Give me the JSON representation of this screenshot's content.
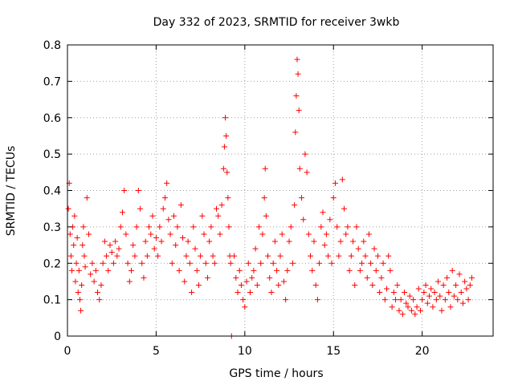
{
  "chart_data": {
    "type": "scatter",
    "title": "Day 332 of 2023, SRMTID for receiver 3wkb",
    "xlabel": "GPS time / hours",
    "ylabel": "SRMTID / TECUs",
    "xlim": [
      0,
      24
    ],
    "ylim": [
      0,
      0.8
    ],
    "grid": true,
    "marker": "plus",
    "marker_color": "#ff0000",
    "x_ticks": [
      {
        "value": 0,
        "label": "0"
      },
      {
        "value": 5,
        "label": "5"
      },
      {
        "value": 10,
        "label": "10"
      },
      {
        "value": 15,
        "label": "15"
      },
      {
        "value": 20,
        "label": "20"
      }
    ],
    "y_ticks": [
      {
        "value": 0,
        "label": "0"
      },
      {
        "value": 0.1,
        "label": "0.1"
      },
      {
        "value": 0.2,
        "label": "0.2"
      },
      {
        "value": 0.3,
        "label": "0.3"
      },
      {
        "value": 0.4,
        "label": "0.4"
      },
      {
        "value": 0.5,
        "label": "0.5"
      },
      {
        "value": 0.6,
        "label": "0.6"
      },
      {
        "value": 0.7,
        "label": "0.7"
      },
      {
        "value": 0.8,
        "label": "0.8"
      }
    ],
    "series": [
      {
        "name": "SRMTID",
        "color": "#ff0000",
        "points": [
          [
            0.05,
            0.35
          ],
          [
            0.1,
            0.42
          ],
          [
            0.15,
            0.28
          ],
          [
            0.2,
            0.22
          ],
          [
            0.25,
            0.18
          ],
          [
            0.3,
            0.3
          ],
          [
            0.35,
            0.25
          ],
          [
            0.4,
            0.33
          ],
          [
            0.45,
            0.15
          ],
          [
            0.5,
            0.2
          ],
          [
            0.55,
            0.27
          ],
          [
            0.6,
            0.12
          ],
          [
            0.65,
            0.18
          ],
          [
            0.7,
            0.1
          ],
          [
            0.75,
            0.07
          ],
          [
            0.8,
            0.14
          ],
          [
            0.85,
            0.25
          ],
          [
            0.9,
            0.3
          ],
          [
            0.95,
            0.22
          ],
          [
            1.0,
            0.19
          ],
          [
            1.1,
            0.38
          ],
          [
            1.2,
            0.28
          ],
          [
            1.3,
            0.17
          ],
          [
            1.4,
            0.2
          ],
          [
            1.5,
            0.15
          ],
          [
            1.6,
            0.18
          ],
          [
            1.7,
            0.12
          ],
          [
            1.8,
            0.1
          ],
          [
            1.9,
            0.14
          ],
          [
            2.0,
            0.2
          ],
          [
            2.1,
            0.26
          ],
          [
            2.2,
            0.22
          ],
          [
            2.3,
            0.18
          ],
          [
            2.4,
            0.25
          ],
          [
            2.5,
            0.23
          ],
          [
            2.6,
            0.2
          ],
          [
            2.7,
            0.26
          ],
          [
            2.8,
            0.22
          ],
          [
            2.9,
            0.24
          ],
          [
            3.0,
            0.3
          ],
          [
            3.1,
            0.34
          ],
          [
            3.2,
            0.4
          ],
          [
            3.3,
            0.28
          ],
          [
            3.4,
            0.2
          ],
          [
            3.5,
            0.15
          ],
          [
            3.6,
            0.18
          ],
          [
            3.7,
            0.25
          ],
          [
            3.8,
            0.22
          ],
          [
            3.9,
            0.3
          ],
          [
            4.0,
            0.4
          ],
          [
            4.1,
            0.35
          ],
          [
            4.2,
            0.2
          ],
          [
            4.3,
            0.16
          ],
          [
            4.4,
            0.26
          ],
          [
            4.5,
            0.22
          ],
          [
            4.6,
            0.3
          ],
          [
            4.7,
            0.28
          ],
          [
            4.8,
            0.33
          ],
          [
            4.9,
            0.24
          ],
          [
            5.0,
            0.27
          ],
          [
            5.1,
            0.22
          ],
          [
            5.2,
            0.3
          ],
          [
            5.3,
            0.26
          ],
          [
            5.4,
            0.35
          ],
          [
            5.5,
            0.38
          ],
          [
            5.6,
            0.42
          ],
          [
            5.7,
            0.32
          ],
          [
            5.8,
            0.28
          ],
          [
            5.9,
            0.2
          ],
          [
            6.0,
            0.33
          ],
          [
            6.1,
            0.25
          ],
          [
            6.2,
            0.3
          ],
          [
            6.3,
            0.18
          ],
          [
            6.4,
            0.36
          ],
          [
            6.5,
            0.27
          ],
          [
            6.6,
            0.15
          ],
          [
            6.7,
            0.22
          ],
          [
            6.8,
            0.26
          ],
          [
            6.9,
            0.2
          ],
          [
            7.0,
            0.12
          ],
          [
            7.1,
            0.3
          ],
          [
            7.2,
            0.24
          ],
          [
            7.3,
            0.18
          ],
          [
            7.4,
            0.14
          ],
          [
            7.5,
            0.22
          ],
          [
            7.6,
            0.33
          ],
          [
            7.7,
            0.28
          ],
          [
            7.8,
            0.2
          ],
          [
            7.9,
            0.16
          ],
          [
            8.0,
            0.26
          ],
          [
            8.1,
            0.3
          ],
          [
            8.2,
            0.22
          ],
          [
            8.3,
            0.2
          ],
          [
            8.4,
            0.35
          ],
          [
            8.5,
            0.33
          ],
          [
            8.6,
            0.28
          ],
          [
            8.7,
            0.36
          ],
          [
            8.8,
            0.46
          ],
          [
            8.85,
            0.52
          ],
          [
            8.9,
            0.6
          ],
          [
            8.95,
            0.55
          ],
          [
            9.0,
            0.45
          ],
          [
            9.05,
            0.38
          ],
          [
            9.1,
            0.3
          ],
          [
            9.15,
            0.22
          ],
          [
            9.2,
            0.2
          ],
          [
            9.25,
            0.0
          ],
          [
            9.4,
            0.22
          ],
          [
            9.5,
            0.16
          ],
          [
            9.6,
            0.12
          ],
          [
            9.7,
            0.18
          ],
          [
            9.8,
            0.14
          ],
          [
            9.9,
            0.1
          ],
          [
            10.0,
            0.08
          ],
          [
            10.1,
            0.15
          ],
          [
            10.2,
            0.2
          ],
          [
            10.3,
            0.12
          ],
          [
            10.4,
            0.16
          ],
          [
            10.5,
            0.18
          ],
          [
            10.6,
            0.24
          ],
          [
            10.7,
            0.14
          ],
          [
            10.8,
            0.3
          ],
          [
            10.9,
            0.2
          ],
          [
            11.0,
            0.28
          ],
          [
            11.1,
            0.38
          ],
          [
            11.15,
            0.46
          ],
          [
            11.2,
            0.33
          ],
          [
            11.3,
            0.22
          ],
          [
            11.4,
            0.16
          ],
          [
            11.5,
            0.12
          ],
          [
            11.6,
            0.2
          ],
          [
            11.7,
            0.26
          ],
          [
            11.8,
            0.18
          ],
          [
            11.9,
            0.14
          ],
          [
            12.0,
            0.22
          ],
          [
            12.1,
            0.28
          ],
          [
            12.2,
            0.15
          ],
          [
            12.3,
            0.1
          ],
          [
            12.4,
            0.18
          ],
          [
            12.5,
            0.26
          ],
          [
            12.6,
            0.3
          ],
          [
            12.7,
            0.2
          ],
          [
            12.8,
            0.36
          ],
          [
            12.85,
            0.56
          ],
          [
            12.9,
            0.66
          ],
          [
            12.95,
            0.76
          ],
          [
            13.0,
            0.72
          ],
          [
            13.05,
            0.62
          ],
          [
            13.1,
            0.46
          ],
          [
            13.2,
            0.38
          ],
          [
            13.3,
            0.32
          ],
          [
            13.4,
            0.5
          ],
          [
            13.5,
            0.45
          ],
          [
            13.6,
            0.28
          ],
          [
            13.7,
            0.22
          ],
          [
            13.8,
            0.18
          ],
          [
            13.9,
            0.26
          ],
          [
            14.0,
            0.14
          ],
          [
            14.1,
            0.1
          ],
          [
            14.2,
            0.2
          ],
          [
            14.3,
            0.3
          ],
          [
            14.4,
            0.34
          ],
          [
            14.5,
            0.25
          ],
          [
            14.6,
            0.28
          ],
          [
            14.7,
            0.22
          ],
          [
            14.8,
            0.32
          ],
          [
            14.9,
            0.2
          ],
          [
            15.0,
            0.38
          ],
          [
            15.1,
            0.42
          ],
          [
            15.2,
            0.3
          ],
          [
            15.3,
            0.22
          ],
          [
            15.4,
            0.26
          ],
          [
            15.5,
            0.43
          ],
          [
            15.6,
            0.35
          ],
          [
            15.7,
            0.28
          ],
          [
            15.8,
            0.3
          ],
          [
            15.9,
            0.18
          ],
          [
            16.0,
            0.22
          ],
          [
            16.1,
            0.26
          ],
          [
            16.2,
            0.14
          ],
          [
            16.3,
            0.3
          ],
          [
            16.4,
            0.24
          ],
          [
            16.5,
            0.18
          ],
          [
            16.6,
            0.2
          ],
          [
            16.7,
            0.26
          ],
          [
            16.8,
            0.22
          ],
          [
            16.9,
            0.16
          ],
          [
            17.0,
            0.28
          ],
          [
            17.1,
            0.2
          ],
          [
            17.2,
            0.14
          ],
          [
            17.3,
            0.24
          ],
          [
            17.4,
            0.18
          ],
          [
            17.5,
            0.22
          ],
          [
            17.6,
            0.12
          ],
          [
            17.7,
            0.16
          ],
          [
            17.8,
            0.2
          ],
          [
            17.9,
            0.1
          ],
          [
            18.0,
            0.13
          ],
          [
            18.1,
            0.22
          ],
          [
            18.2,
            0.18
          ],
          [
            18.3,
            0.08
          ],
          [
            18.4,
            0.12
          ],
          [
            18.5,
            0.1
          ],
          [
            18.6,
            0.14
          ],
          [
            18.7,
            0.07
          ],
          [
            18.8,
            0.1
          ],
          [
            18.9,
            0.06
          ],
          [
            19.0,
            0.12
          ],
          [
            19.1,
            0.09
          ],
          [
            19.2,
            0.08
          ],
          [
            19.3,
            0.11
          ],
          [
            19.4,
            0.07
          ],
          [
            19.5,
            0.1
          ],
          [
            19.6,
            0.06
          ],
          [
            19.7,
            0.08
          ],
          [
            19.8,
            0.13
          ],
          [
            19.9,
            0.07
          ],
          [
            20.0,
            0.1
          ],
          [
            20.1,
            0.12
          ],
          [
            20.2,
            0.14
          ],
          [
            20.3,
            0.09
          ],
          [
            20.4,
            0.11
          ],
          [
            20.5,
            0.13
          ],
          [
            20.6,
            0.08
          ],
          [
            20.7,
            0.12
          ],
          [
            20.8,
            0.1
          ],
          [
            20.9,
            0.15
          ],
          [
            21.0,
            0.11
          ],
          [
            21.1,
            0.07
          ],
          [
            21.2,
            0.14
          ],
          [
            21.3,
            0.1
          ],
          [
            21.4,
            0.16
          ],
          [
            21.5,
            0.12
          ],
          [
            21.6,
            0.08
          ],
          [
            21.7,
            0.18
          ],
          [
            21.8,
            0.11
          ],
          [
            21.9,
            0.14
          ],
          [
            22.0,
            0.1
          ],
          [
            22.1,
            0.17
          ],
          [
            22.2,
            0.12
          ],
          [
            22.3,
            0.09
          ],
          [
            22.4,
            0.15
          ],
          [
            22.5,
            0.13
          ],
          [
            22.6,
            0.1
          ],
          [
            22.7,
            0.14
          ],
          [
            22.8,
            0.16
          ]
        ]
      }
    ]
  }
}
